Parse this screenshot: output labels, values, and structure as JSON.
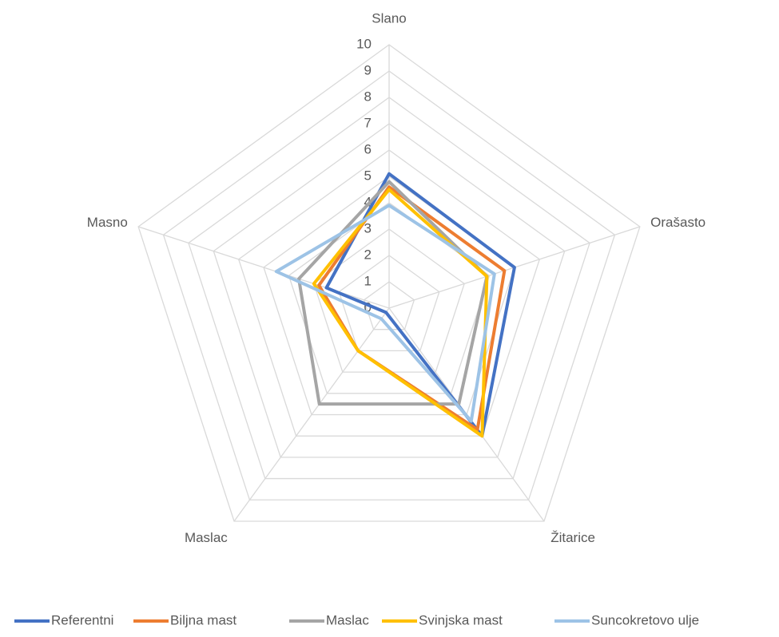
{
  "chart_data": {
    "type": "radar",
    "categories": [
      "Slano",
      "Orašasto",
      "Žitarice",
      "Maslac",
      "Masno"
    ],
    "rlim": [
      0,
      10
    ],
    "rticks": [
      0,
      1,
      2,
      3,
      4,
      5,
      6,
      7,
      8,
      9,
      10
    ],
    "grid": true,
    "legend": "bottom",
    "series": [
      {
        "name": "Referentni",
        "color": "#4472c4",
        "values": [
          5.1,
          5.0,
          6.0,
          0.2,
          2.5
        ]
      },
      {
        "name": "Biljna mast",
        "color": "#ed7d31",
        "values": [
          4.6,
          4.6,
          5.7,
          2.0,
          2.8
        ]
      },
      {
        "name": "Maslac",
        "color": "#a5a5a5",
        "values": [
          4.8,
          3.9,
          4.5,
          4.5,
          3.6
        ]
      },
      {
        "name": "Svinjska mast",
        "color": "#ffc000",
        "values": [
          4.5,
          3.9,
          6.0,
          2.0,
          3.0
        ]
      },
      {
        "name": "Suncokretovo ulje",
        "color": "#9dc3e6",
        "values": [
          3.9,
          4.2,
          5.3,
          0.5,
          4.5
        ]
      }
    ]
  }
}
